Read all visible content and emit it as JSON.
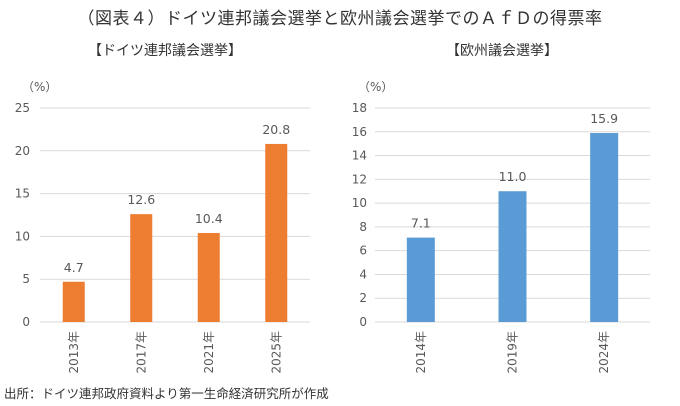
{
  "title": "（図表４）ドイツ連邦議会選挙と欧州議会選挙でのＡｆＤの得票率",
  "source": "出所：ドイツ連邦政府資料より第一生命経済研究所が作成",
  "colors": {
    "left_bar": "#ED7D31",
    "right_bar": "#5B9BD5",
    "grid": "#D9D9D9",
    "text": "#595959"
  },
  "chart_data": [
    {
      "type": "bar",
      "title": "【ドイツ連邦議会選挙】",
      "ylabel": "（%）",
      "xlabel": "",
      "categories": [
        "2013年",
        "2017年",
        "2021年",
        "2025年"
      ],
      "values": [
        4.7,
        12.6,
        10.4,
        20.8
      ],
      "data_labels": [
        "4.7",
        "12.6",
        "10.4",
        "20.8"
      ],
      "ylim": [
        0,
        25
      ],
      "yticks": [
        0,
        5,
        10,
        15,
        20,
        25
      ],
      "grid": true,
      "legend": "none"
    },
    {
      "type": "bar",
      "title": "【欧州議会選挙】",
      "ylabel": "（%）",
      "xlabel": "",
      "categories": [
        "2014年",
        "2019年",
        "2024年"
      ],
      "values": [
        7.1,
        11.0,
        15.9
      ],
      "data_labels": [
        "7.1",
        "11.0",
        "15.9"
      ],
      "ylim": [
        0,
        18
      ],
      "yticks": [
        0,
        2,
        4,
        6,
        8,
        10,
        12,
        14,
        16,
        18
      ],
      "grid": true,
      "legend": "none"
    }
  ]
}
